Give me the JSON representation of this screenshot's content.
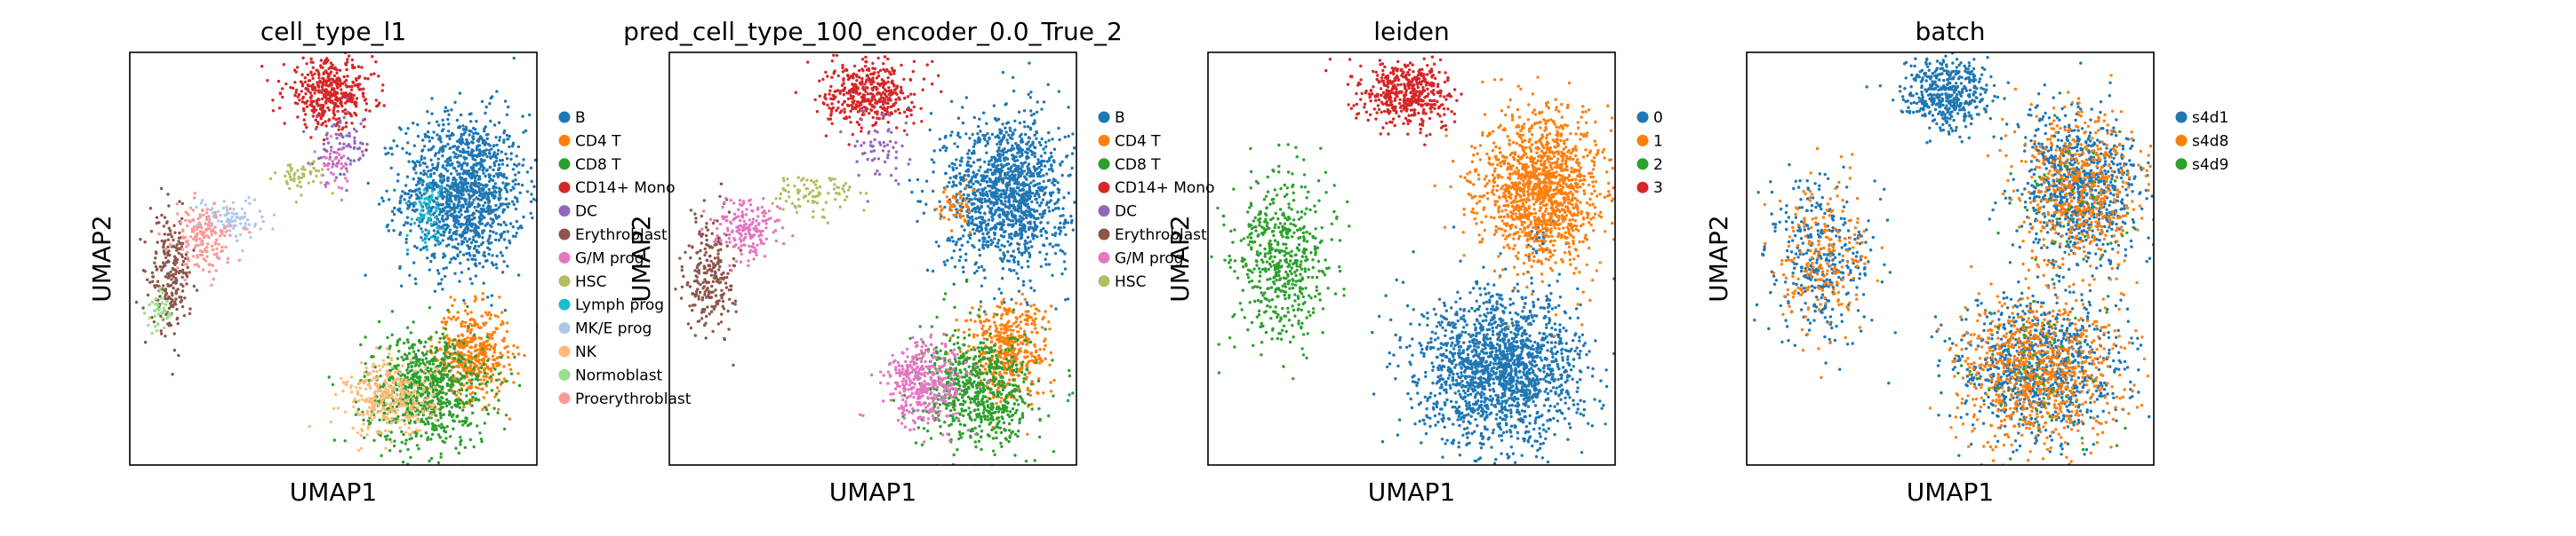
{
  "figure": {
    "panels": [
      {
        "title": "cell_type_l1",
        "xlabel": "UMAP1",
        "ylabel": "UMAP2",
        "legend": [
          {
            "label": "B",
            "color": "#1f77b4"
          },
          {
            "label": "CD4 T",
            "color": "#ff7f0e"
          },
          {
            "label": "CD8 T",
            "color": "#2ca02c"
          },
          {
            "label": "CD14+ Mono",
            "color": "#d62728"
          },
          {
            "label": "DC",
            "color": "#9467bd"
          },
          {
            "label": "Erythroblast",
            "color": "#8c564b"
          },
          {
            "label": "G/M prog",
            "color": "#e377c2"
          },
          {
            "label": "HSC",
            "color": "#b5bd61"
          },
          {
            "label": "Lymph prog",
            "color": "#17becf"
          },
          {
            "label": "MK/E prog",
            "color": "#aec7e8"
          },
          {
            "label": "NK",
            "color": "#ffbb78"
          },
          {
            "label": "Normoblast",
            "color": "#98df8a"
          },
          {
            "label": "Proerythroblast",
            "color": "#ff9896"
          }
        ]
      },
      {
        "title": "pred_cell_type_100_encoder_0.0_True_2",
        "xlabel": "UMAP1",
        "ylabel": "UMAP2",
        "legend": [
          {
            "label": "B",
            "color": "#1f77b4"
          },
          {
            "label": "CD4 T",
            "color": "#ff7f0e"
          },
          {
            "label": "CD8 T",
            "color": "#2ca02c"
          },
          {
            "label": "CD14+ Mono",
            "color": "#d62728"
          },
          {
            "label": "DC",
            "color": "#9467bd"
          },
          {
            "label": "Erythroblast",
            "color": "#8c564b"
          },
          {
            "label": "G/M prog",
            "color": "#e377c2"
          },
          {
            "label": "HSC",
            "color": "#b5bd61"
          }
        ]
      },
      {
        "title": "leiden",
        "xlabel": "UMAP1",
        "ylabel": "UMAP2",
        "legend": [
          {
            "label": "0",
            "color": "#1f77b4"
          },
          {
            "label": "1",
            "color": "#ff7f0e"
          },
          {
            "label": "2",
            "color": "#2ca02c"
          },
          {
            "label": "3",
            "color": "#d62728"
          }
        ]
      },
      {
        "title": "batch",
        "xlabel": "UMAP1",
        "ylabel": "UMAP2",
        "legend": [
          {
            "label": "s4d1",
            "color": "#1f77b4"
          },
          {
            "label": "s4d8",
            "color": "#ff7f0e"
          },
          {
            "label": "s4d9",
            "color": "#2ca02c"
          }
        ]
      }
    ]
  },
  "chart_data": [
    {
      "type": "scatter",
      "title": "cell_type_l1",
      "xlabel": "UMAP1",
      "ylabel": "UMAP2",
      "grid": false,
      "legend_position": "right-outside",
      "series": [
        {
          "name": "B",
          "color": "#1f77b4",
          "clusters": [
            {
              "x": 0.82,
              "y": 0.66,
              "sx": 0.075,
              "sy": 0.095,
              "n": 1300
            }
          ]
        },
        {
          "name": "CD4 T",
          "color": "#ff7f0e",
          "clusters": [
            {
              "x": 0.84,
              "y": 0.27,
              "sx": 0.045,
              "sy": 0.055,
              "n": 450
            }
          ]
        },
        {
          "name": "CD8 T",
          "color": "#2ca02c",
          "clusters": [
            {
              "x": 0.73,
              "y": 0.18,
              "sx": 0.075,
              "sy": 0.07,
              "n": 800
            }
          ]
        },
        {
          "name": "CD14+ Mono",
          "color": "#d62728",
          "clusters": [
            {
              "x": 0.49,
              "y": 0.9,
              "sx": 0.055,
              "sy": 0.04,
              "n": 420
            }
          ]
        },
        {
          "name": "DC",
          "color": "#9467bd",
          "clusters": [
            {
              "x": 0.52,
              "y": 0.77,
              "sx": 0.035,
              "sy": 0.04,
              "n": 80
            }
          ]
        },
        {
          "name": "Erythroblast",
          "color": "#8c564b",
          "clusters": [
            {
              "x": 0.1,
              "y": 0.46,
              "sx": 0.025,
              "sy": 0.07,
              "n": 230
            }
          ]
        },
        {
          "name": "G/M prog",
          "color": "#e377c2",
          "clusters": [
            {
              "x": 0.5,
              "y": 0.73,
              "sx": 0.02,
              "sy": 0.025,
              "n": 40
            }
          ]
        },
        {
          "name": "HSC",
          "color": "#b5bd61",
          "clusters": [
            {
              "x": 0.42,
              "y": 0.7,
              "sx": 0.03,
              "sy": 0.02,
              "n": 50
            }
          ]
        },
        {
          "name": "Lymph prog",
          "color": "#17becf",
          "clusters": [
            {
              "x": 0.73,
              "y": 0.62,
              "sx": 0.02,
              "sy": 0.04,
              "n": 70
            }
          ]
        },
        {
          "name": "MK/E prog",
          "color": "#aec7e8",
          "clusters": [
            {
              "x": 0.25,
              "y": 0.6,
              "sx": 0.04,
              "sy": 0.025,
              "n": 90
            }
          ]
        },
        {
          "name": "NK",
          "color": "#ffbb78",
          "clusters": [
            {
              "x": 0.64,
              "y": 0.16,
              "sx": 0.055,
              "sy": 0.045,
              "n": 330
            }
          ]
        },
        {
          "name": "Normoblast",
          "color": "#98df8a",
          "clusters": [
            {
              "x": 0.07,
              "y": 0.37,
              "sx": 0.015,
              "sy": 0.025,
              "n": 40
            }
          ]
        },
        {
          "name": "Proerythroblast",
          "color": "#ff9896",
          "clusters": [
            {
              "x": 0.18,
              "y": 0.55,
              "sx": 0.035,
              "sy": 0.04,
              "n": 170
            }
          ]
        }
      ]
    },
    {
      "type": "scatter",
      "title": "pred_cell_type_100_encoder_0.0_True_2",
      "xlabel": "UMAP1",
      "ylabel": "UMAP2",
      "grid": false,
      "legend_position": "right-outside",
      "series": [
        {
          "name": "B",
          "color": "#1f77b4",
          "clusters": [
            {
              "x": 0.83,
              "y": 0.66,
              "sx": 0.075,
              "sy": 0.095,
              "n": 1300
            }
          ]
        },
        {
          "name": "CD4 T",
          "color": "#ff7f0e",
          "clusters": [
            {
              "x": 0.83,
              "y": 0.28,
              "sx": 0.05,
              "sy": 0.06,
              "n": 450
            },
            {
              "x": 0.7,
              "y": 0.62,
              "sx": 0.02,
              "sy": 0.03,
              "n": 50
            }
          ]
        },
        {
          "name": "CD8 T",
          "color": "#2ca02c",
          "clusters": [
            {
              "x": 0.76,
              "y": 0.18,
              "sx": 0.07,
              "sy": 0.07,
              "n": 700
            }
          ]
        },
        {
          "name": "CD14+ Mono",
          "color": "#d62728",
          "clusters": [
            {
              "x": 0.49,
              "y": 0.9,
              "sx": 0.055,
              "sy": 0.04,
              "n": 420
            }
          ]
        },
        {
          "name": "DC",
          "color": "#9467bd",
          "clusters": [
            {
              "x": 0.52,
              "y": 0.77,
              "sx": 0.035,
              "sy": 0.04,
              "n": 60
            }
          ]
        },
        {
          "name": "Erythroblast",
          "color": "#8c564b",
          "clusters": [
            {
              "x": 0.1,
              "y": 0.46,
              "sx": 0.03,
              "sy": 0.07,
              "n": 240
            }
          ]
        },
        {
          "name": "G/M prog",
          "color": "#e377c2",
          "clusters": [
            {
              "x": 0.63,
              "y": 0.2,
              "sx": 0.05,
              "sy": 0.05,
              "n": 380
            },
            {
              "x": 0.19,
              "y": 0.57,
              "sx": 0.04,
              "sy": 0.04,
              "n": 180
            }
          ]
        },
        {
          "name": "HSC",
          "color": "#b5bd61",
          "clusters": [
            {
              "x": 0.35,
              "y": 0.66,
              "sx": 0.05,
              "sy": 0.025,
              "n": 90
            }
          ]
        }
      ]
    },
    {
      "type": "scatter",
      "title": "leiden",
      "xlabel": "UMAP1",
      "ylabel": "UMAP2",
      "grid": false,
      "legend_position": "right-outside",
      "series": [
        {
          "name": "0",
          "color": "#1f77b4",
          "clusters": [
            {
              "x": 0.72,
              "y": 0.23,
              "sx": 0.1,
              "sy": 0.09,
              "n": 1700
            },
            {
              "x": 0.82,
              "y": 0.55,
              "sx": 0.02,
              "sy": 0.02,
              "n": 25
            }
          ]
        },
        {
          "name": "1",
          "color": "#ff7f0e",
          "clusters": [
            {
              "x": 0.82,
              "y": 0.67,
              "sx": 0.075,
              "sy": 0.09,
              "n": 1350
            }
          ]
        },
        {
          "name": "2",
          "color": "#2ca02c",
          "clusters": [
            {
              "x": 0.18,
              "y": 0.5,
              "sx": 0.06,
              "sy": 0.1,
              "n": 550
            }
          ]
        },
        {
          "name": "3",
          "color": "#d62728",
          "clusters": [
            {
              "x": 0.49,
              "y": 0.9,
              "sx": 0.055,
              "sy": 0.04,
              "n": 480
            }
          ]
        }
      ]
    },
    {
      "type": "scatter",
      "title": "batch",
      "xlabel": "UMAP1",
      "ylabel": "UMAP2",
      "grid": false,
      "legend_position": "right-outside",
      "series": [
        {
          "name": "s4d1",
          "color": "#1f77b4",
          "clusters": [
            {
              "x": 0.72,
              "y": 0.23,
              "sx": 0.1,
              "sy": 0.09,
              "n": 900
            },
            {
              "x": 0.82,
              "y": 0.67,
              "sx": 0.075,
              "sy": 0.09,
              "n": 800
            },
            {
              "x": 0.49,
              "y": 0.9,
              "sx": 0.055,
              "sy": 0.04,
              "n": 450
            },
            {
              "x": 0.18,
              "y": 0.5,
              "sx": 0.06,
              "sy": 0.1,
              "n": 350
            }
          ]
        },
        {
          "name": "s4d8",
          "color": "#ff7f0e",
          "clusters": [
            {
              "x": 0.72,
              "y": 0.23,
              "sx": 0.1,
              "sy": 0.09,
              "n": 800
            },
            {
              "x": 0.82,
              "y": 0.67,
              "sx": 0.075,
              "sy": 0.09,
              "n": 550
            },
            {
              "x": 0.18,
              "y": 0.5,
              "sx": 0.06,
              "sy": 0.1,
              "n": 220
            }
          ]
        },
        {
          "name": "s4d9",
          "color": "#2ca02c",
          "clusters": [
            {
              "x": 0.72,
              "y": 0.23,
              "sx": 0.1,
              "sy": 0.09,
              "n": 60
            },
            {
              "x": 0.82,
              "y": 0.67,
              "sx": 0.075,
              "sy": 0.09,
              "n": 40
            }
          ]
        }
      ]
    }
  ]
}
